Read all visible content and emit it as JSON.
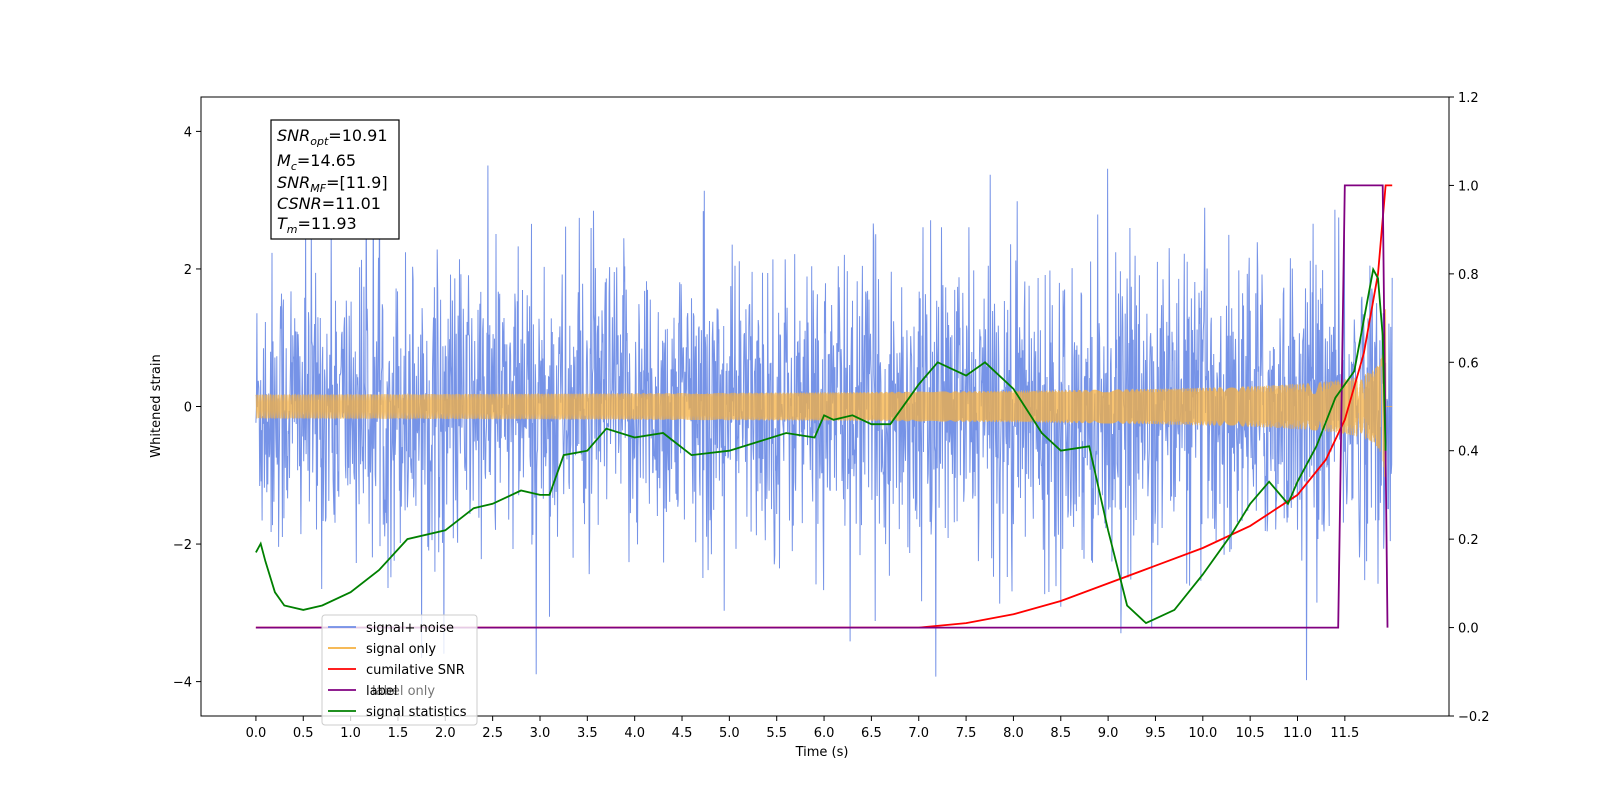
{
  "chart_data": {
    "type": "line",
    "xlabel": "Time (s)",
    "ylabel": "Whitened strain",
    "ylabel_right": "",
    "xlim": [
      -0.58,
      12.6
    ],
    "ylim": [
      -4.5,
      4.5
    ],
    "ylim_right": [
      -0.2,
      1.2
    ],
    "x_ticks": [
      "0.0",
      "0.5",
      "1.0",
      "1.5",
      "2.0",
      "2.5",
      "3.0",
      "3.5",
      "4.0",
      "4.5",
      "5.0",
      "5.5",
      "6.0",
      "6.5",
      "7.0",
      "7.5",
      "8.0",
      "8.5",
      "9.0",
      "9.5",
      "10.0",
      "10.5",
      "11.0",
      "11.5"
    ],
    "y_ticks": [
      "−4",
      "−2",
      "0",
      "2",
      "4"
    ],
    "y_ticks_right": [
      "−0.2",
      "0.0",
      "0.2",
      "0.4",
      "0.6",
      "0.8",
      "1.0",
      "1.2"
    ],
    "grid": false,
    "legend_position": "lower-left",
    "annotation": {
      "snr_opt": {
        "base": "SNR",
        "sub": "opt",
        "value": "=10.91"
      },
      "mc": {
        "base": "M",
        "sub": "c",
        "value": "=14.65"
      },
      "snr_mf": {
        "base": "SNR",
        "sub": "MF",
        "value": "=[11.9]"
      },
      "csnr": {
        "base": "CSNR",
        "value": "=11.01"
      },
      "tm": {
        "base": "T",
        "sub": "m",
        "value": "=11.93"
      }
    },
    "series": [
      {
        "name": "signal+ noise",
        "color": "#6f8de6",
        "axis": "left",
        "description_note": "noise-dominated whitened strain, approx amplitude ±2.5 with spikes near ±4",
        "t_range": [
          0.0,
          12.0
        ],
        "envelope": 2.4
      },
      {
        "name": "signal only",
        "color": "#f5b041",
        "axis": "left",
        "t_range": [
          0.0,
          12.0
        ],
        "chirp": {
          "amplitude_start": 0.0,
          "amplitude_end": 1.7,
          "merger_time": 11.93
        }
      },
      {
        "name": "cumilative SNR",
        "color": "#ff0000",
        "axis": "right",
        "x": [
          0.0,
          7.0,
          7.5,
          8.0,
          8.5,
          9.0,
          9.5,
          10.0,
          10.5,
          11.0,
          11.3,
          11.5,
          11.7,
          11.85,
          11.93,
          12.0
        ],
        "y": [
          0.0,
          0.0,
          0.01,
          0.03,
          0.06,
          0.1,
          0.14,
          0.18,
          0.23,
          0.3,
          0.38,
          0.47,
          0.62,
          0.8,
          1.0,
          1.0
        ]
      },
      {
        "name": "label",
        "color": "#800080",
        "axis": "right",
        "x": [
          0.0,
          11.43,
          11.5,
          11.9,
          11.95
        ],
        "y": [
          0.0,
          0.0,
          1.0,
          1.0,
          0.0
        ]
      },
      {
        "name": "label only",
        "color": "#ffffff",
        "axis": "right",
        "hidden_behind": true
      },
      {
        "name": "signal statistics",
        "color": "#008000",
        "axis": "right",
        "x": [
          0.0,
          0.05,
          0.1,
          0.2,
          0.3,
          0.5,
          0.7,
          1.0,
          1.3,
          1.6,
          2.0,
          2.3,
          2.5,
          2.8,
          3.0,
          3.1,
          3.25,
          3.5,
          3.7,
          4.0,
          4.3,
          4.6,
          5.0,
          5.3,
          5.6,
          5.9,
          6.0,
          6.1,
          6.3,
          6.5,
          6.7,
          6.9,
          7.0,
          7.2,
          7.5,
          7.7,
          8.0,
          8.3,
          8.5,
          8.8,
          9.0,
          9.2,
          9.4,
          9.5,
          9.7,
          10.0,
          10.3,
          10.5,
          10.7,
          10.9,
          11.0,
          11.2,
          11.4,
          11.6,
          11.8,
          11.85,
          11.9,
          11.93
        ],
        "y": [
          0.17,
          0.19,
          0.15,
          0.08,
          0.05,
          0.04,
          0.05,
          0.08,
          0.13,
          0.2,
          0.22,
          0.27,
          0.28,
          0.31,
          0.3,
          0.3,
          0.39,
          0.4,
          0.45,
          0.43,
          0.44,
          0.39,
          0.4,
          0.42,
          0.44,
          0.43,
          0.48,
          0.47,
          0.48,
          0.46,
          0.46,
          0.52,
          0.55,
          0.6,
          0.57,
          0.6,
          0.54,
          0.44,
          0.4,
          0.41,
          0.22,
          0.05,
          0.01,
          0.02,
          0.04,
          0.12,
          0.21,
          0.28,
          0.33,
          0.28,
          0.33,
          0.41,
          0.52,
          0.58,
          0.81,
          0.79,
          0.66,
          0.4
        ]
      }
    ]
  }
}
